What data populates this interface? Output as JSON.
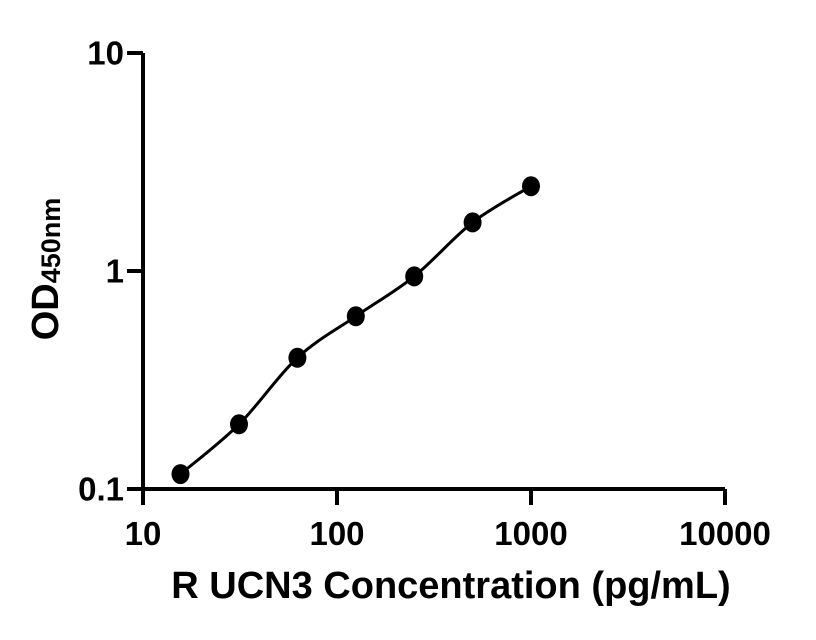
{
  "figure": {
    "background_color": "#ffffff",
    "axis_color": "#000000",
    "marker_color": "#000000",
    "curve_color": "#000000"
  },
  "chart_data": {
    "type": "line",
    "subtype": "scatter-with-fitted-curve",
    "title": "",
    "xlabel": "R UCN3 Concentration (pg/mL)",
    "ylabel": "OD",
    "ylabel_subscript": "450nm",
    "x_scale": "log",
    "y_scale": "log",
    "xlim": [
      10,
      10000
    ],
    "ylim": [
      0.1,
      10
    ],
    "x_ticks": [
      "10",
      "100",
      "1000",
      "10000"
    ],
    "y_ticks": [
      "10",
      "1",
      "0.1"
    ],
    "x": [
      15.6,
      31.25,
      62.5,
      125,
      250,
      500,
      1000
    ],
    "y": [
      0.117,
      0.198,
      0.4,
      0.62,
      0.945,
      1.67,
      2.45
    ],
    "grid": false,
    "legend_position": "none",
    "marker": "filled-circle",
    "line_style": "solid"
  }
}
